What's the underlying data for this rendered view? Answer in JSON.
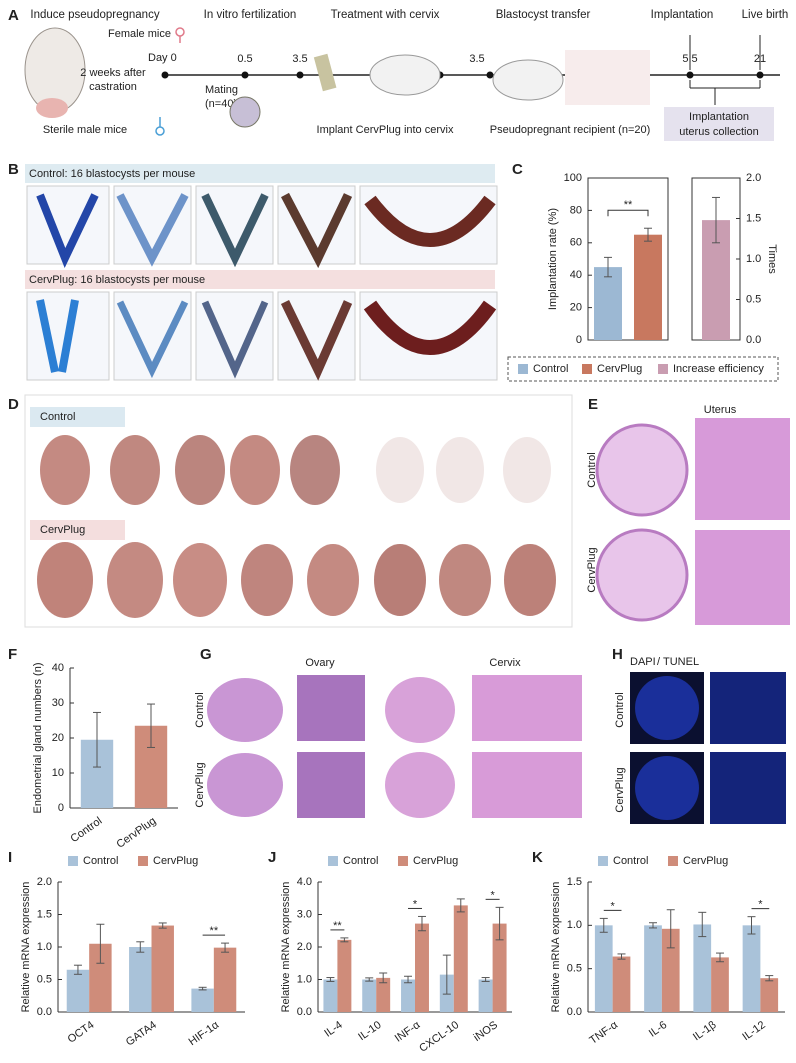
{
  "panel_labels": [
    "A",
    "B",
    "C",
    "D",
    "E",
    "F",
    "G",
    "H",
    "I",
    "J",
    "K"
  ],
  "panel_a": {
    "steps": [
      "Induce pseudopregnancy",
      "In vitro fertilization",
      "Treatment with cervix",
      "Blastocyst transfer",
      "Implantation",
      "Live birth"
    ],
    "female": "Female mice",
    "day0": "Day 0",
    "castration": [
      "2 weeks after",
      "castration"
    ],
    "male": "Sterile male mice",
    "mating": [
      "Mating",
      "(n=40)"
    ],
    "days": [
      "0.5",
      "3.5",
      "3.5",
      "5.5",
      "21"
    ],
    "implant": "Implant CervPlug into cervix",
    "recipient": "Pseudopregnant recipient (n=20)",
    "collection": [
      "Implantation",
      "uterus collection"
    ]
  },
  "panel_b": {
    "control": "Control: 16 blastocysts per mouse",
    "cervplug": "CervPlug: 16 blastocysts per mouse"
  },
  "panel_d": {
    "control": "Control",
    "cervplug": "CervPlug"
  },
  "panel_e": {
    "title": "Uterus",
    "rows": [
      "Control",
      "CervPlug"
    ]
  },
  "panel_g": {
    "columns": [
      "Ovary",
      "Cervix"
    ],
    "rows": [
      "Control",
      "CervPlug"
    ]
  },
  "panel_h": {
    "stain": [
      "DAPI",
      "/",
      "TUNEL"
    ],
    "rows": [
      "Control",
      "CervPlug"
    ]
  },
  "chart_data": [
    {
      "type": "bar",
      "ylabel": "Implantation rate (%)",
      "y2label": "Times",
      "ylim": [
        0,
        100
      ],
      "yticks": [
        0,
        20,
        40,
        60,
        80,
        100
      ],
      "y2lim": [
        0,
        2
      ],
      "y2ticks": [
        {
          "value": 0,
          "label": "0.0"
        },
        {
          "value": 0.5,
          "label": "0.5"
        },
        {
          "value": 1,
          "label": "1.0"
        },
        {
          "value": 1.5,
          "label": "1.5"
        },
        {
          "value": 2,
          "label": "2.0"
        }
      ],
      "significance": "**",
      "series": [
        {
          "name": "Control",
          "color": "#9cb8d3",
          "values": [
            45
          ],
          "errors": [
            6
          ]
        },
        {
          "name": "CervPlug",
          "color": "#c8785f",
          "values": [
            65
          ],
          "errors": [
            4
          ]
        },
        {
          "name": "Increase efficiency",
          "color": "#c99db1",
          "values": [
            1.48
          ],
          "errors": [
            0.28
          ],
          "axis": "y2"
        }
      ]
    },
    {
      "type": "bar",
      "ylabel": "Endometrial gland numbers (n)",
      "ylim": [
        0,
        40
      ],
      "yticks": [
        0,
        10,
        20,
        30,
        40
      ],
      "categories": [
        "Control",
        "CervPlug"
      ],
      "values": [
        19.5,
        23.5
      ],
      "errors": [
        7.8,
        6.2
      ],
      "colors": [
        "#a9c2d9",
        "#cf8c7a"
      ]
    },
    {
      "type": "bar",
      "ylabel": "Relative mRNA expression",
      "ylim": [
        0,
        2
      ],
      "yticks": [
        {
          "value": 0,
          "label": "0.0"
        },
        {
          "value": 0.5,
          "label": "0.5"
        },
        {
          "value": 1,
          "label": "1.0"
        },
        {
          "value": 1.5,
          "label": "1.5"
        },
        {
          "value": 2,
          "label": "2.0"
        }
      ],
      "categories": [
        "OCT4",
        "GATA4",
        "HIF-1α"
      ],
      "significance": [
        null,
        null,
        "**"
      ],
      "series": [
        {
          "name": "Control",
          "color": "#a9c2d9",
          "values": [
            0.65,
            1.0,
            0.36
          ],
          "errors": [
            0.07,
            0.08,
            0.02
          ]
        },
        {
          "name": "CervPlug",
          "color": "#cf8c7a",
          "values": [
            1.05,
            1.33,
            0.99
          ],
          "errors": [
            0.3,
            0.04,
            0.07
          ]
        }
      ]
    },
    {
      "type": "bar",
      "ylabel": "Relative mRNA expression",
      "ylim": [
        0,
        4
      ],
      "yticks": [
        {
          "value": 0,
          "label": "0.0"
        },
        {
          "value": 1,
          "label": "1.0"
        },
        {
          "value": 2,
          "label": "2.0"
        },
        {
          "value": 3,
          "label": "3.0"
        },
        {
          "value": 4,
          "label": "4.0"
        }
      ],
      "categories": [
        "IL-4",
        "IL-10",
        "INF-α",
        "CXCL-10",
        "iNOS"
      ],
      "significance": [
        "**",
        null,
        "*",
        null,
        "*"
      ],
      "series": [
        {
          "name": "Control",
          "color": "#a9c2d9",
          "values": [
            1.0,
            1.0,
            1.0,
            1.15,
            1.0
          ],
          "errors": [
            0.06,
            0.05,
            0.1,
            0.6,
            0.06
          ]
        },
        {
          "name": "CervPlug",
          "color": "#cf8c7a",
          "values": [
            2.22,
            1.05,
            2.72,
            3.28,
            2.72
          ],
          "errors": [
            0.06,
            0.15,
            0.22,
            0.2,
            0.5
          ]
        }
      ]
    },
    {
      "type": "bar",
      "ylabel": "Relative mRNA expression",
      "ylim": [
        0,
        1.5
      ],
      "yticks": [
        {
          "value": 0,
          "label": "0.0"
        },
        {
          "value": 0.5,
          "label": "0.5"
        },
        {
          "value": 1,
          "label": "1.0"
        },
        {
          "value": 1.5,
          "label": "1.5"
        }
      ],
      "categories": [
        "TNF-α",
        "IL-6",
        "IL-1β",
        "IL-12"
      ],
      "significance": [
        "*",
        null,
        null,
        "*"
      ],
      "series": [
        {
          "name": "Control",
          "color": "#a9c2d9",
          "values": [
            1.0,
            1.0,
            1.01,
            1.0
          ],
          "errors": [
            0.08,
            0.03,
            0.14,
            0.1
          ]
        },
        {
          "name": "CervPlug",
          "color": "#cf8c7a",
          "values": [
            0.64,
            0.96,
            0.63,
            0.39
          ],
          "errors": [
            0.03,
            0.22,
            0.05,
            0.03
          ]
        }
      ]
    }
  ]
}
